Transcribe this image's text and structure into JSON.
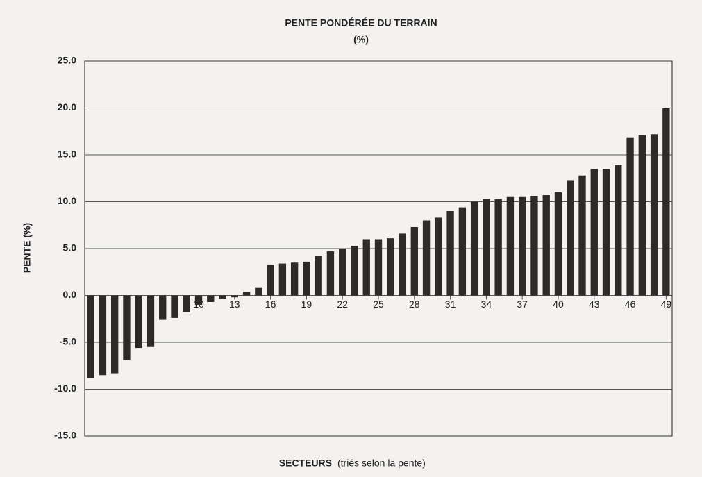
{
  "chart_data": {
    "type": "bar",
    "title": "PENTE PONDÉRÉE DU TERRAIN",
    "subtitle": "(%)",
    "y_label": "PENTE (%)",
    "x_label": "SECTEURS",
    "x_label_note": "(triés selon la pente)",
    "categories": [
      "1",
      null,
      null,
      "4",
      null,
      null,
      "7",
      null,
      null,
      "10",
      null,
      null,
      "13",
      null,
      null,
      "16",
      null,
      null,
      "19",
      null,
      null,
      "22",
      null,
      null,
      "25",
      null,
      null,
      "28",
      null,
      null,
      "31",
      null,
      null,
      "34",
      null,
      null,
      "37",
      null,
      null,
      "40",
      null,
      null,
      "43",
      null,
      null,
      "46",
      null,
      null,
      "49"
    ],
    "values": [
      -8.8,
      -8.5,
      -8.3,
      -6.9,
      -5.6,
      -5.5,
      -2.6,
      -2.4,
      -1.8,
      -1.0,
      -0.7,
      -0.4,
      -0.2,
      0.4,
      0.8,
      3.3,
      3.4,
      3.5,
      3.6,
      4.2,
      4.7,
      5.0,
      5.3,
      6.0,
      6.0,
      6.1,
      6.6,
      7.3,
      8.0,
      8.3,
      9.0,
      9.4,
      10.0,
      10.3,
      10.3,
      10.5,
      10.5,
      10.6,
      10.7,
      11.0,
      12.3,
      12.8,
      13.5,
      13.5,
      13.9,
      16.8,
      17.1,
      17.2,
      20.0
    ],
    "color": "#2e2a2a",
    "ylim": [
      -15,
      25
    ],
    "yticks": [
      {
        "value": -15,
        "label": "-15.0"
      },
      {
        "value": -10,
        "label": "-10.0"
      },
      {
        "value": -5,
        "label": "-5.0"
      },
      {
        "value": 0,
        "label": "0.0"
      },
      {
        "value": 5,
        "label": "5.0"
      },
      {
        "value": 10,
        "label": "10.0"
      },
      {
        "value": 15,
        "label": "15.0"
      },
      {
        "value": 20,
        "label": "20.0"
      },
      {
        "value": 25,
        "label": "25.0"
      }
    ],
    "grid": true
  }
}
